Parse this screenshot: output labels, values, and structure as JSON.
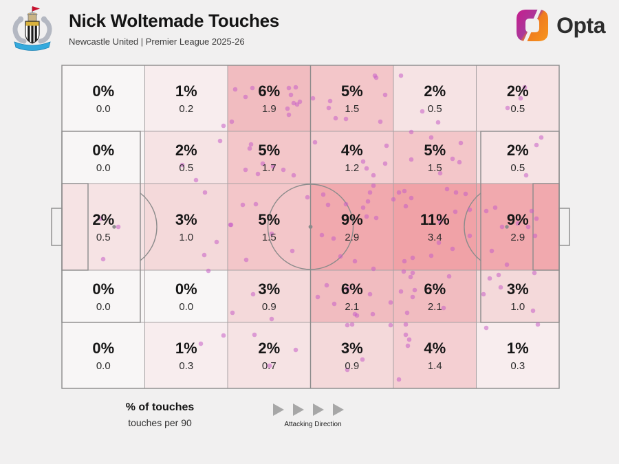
{
  "header": {
    "title": "Nick Woltemade Touches",
    "subtitle": "Newcastle United | Premier League 2025-26",
    "opta_wordmark": "Opta"
  },
  "legend": {
    "primary": "% of touches",
    "secondary": "touches per 90",
    "attacking_direction_label": "Attacking Direction",
    "arrow_count": 4
  },
  "chart_data": {
    "type": "heatmap",
    "title": "Nick Woltemade Touches",
    "subtitle": "Newcastle United | Premier League 2025-26",
    "rows": 5,
    "cols": 6,
    "orientation": "attacking left-to-right",
    "pct": [
      [
        0,
        1,
        6,
        5,
        2,
        2
      ],
      [
        0,
        2,
        5,
        4,
        5,
        2
      ],
      [
        2,
        3,
        5,
        9,
        11,
        9
      ],
      [
        0,
        0,
        3,
        6,
        6,
        3
      ],
      [
        0,
        1,
        2,
        3,
        4,
        1
      ]
    ],
    "per90": [
      [
        "0.0",
        "0.2",
        "1.9",
        "1.5",
        "0.5",
        "0.5"
      ],
      [
        "0.0",
        "0.5",
        "1.7",
        "1.2",
        "1.5",
        "0.5"
      ],
      [
        "0.5",
        "1.0",
        "1.5",
        "2.9",
        "3.4",
        "2.9"
      ],
      [
        "0.0",
        "0.0",
        "0.9",
        "2.1",
        "2.1",
        "1.0"
      ],
      [
        "0.0",
        "0.3",
        "0.7",
        "0.9",
        "1.4",
        "0.3"
      ]
    ],
    "color_scale": {
      "0": "#f8f6f6",
      "1": "#f8edee",
      "2": "#f6e3e4",
      "3": "#f4d9da",
      "4": "#f4cfd2",
      "5": "#f3c6c9",
      "6": "#f1bcc0",
      "9": "#f1a9ae",
      "11": "#f0a2a7"
    },
    "dot_color": "#c75fc7",
    "grid_line_color": "#a8a2a4",
    "pitch_line_color": "#8b8b8b",
    "dots": [
      [
        325,
        183
      ],
      [
        342,
        130
      ],
      [
        367,
        128
      ],
      [
        357,
        141
      ],
      [
        420,
        128
      ],
      [
        430,
        127
      ],
      [
        423,
        138
      ],
      [
        427,
        150
      ],
      [
        432,
        152
      ],
      [
        436,
        148
      ],
      [
        418,
        158
      ],
      [
        420,
        167
      ],
      [
        337,
        177
      ],
      [
        455,
        143
      ],
      [
        480,
        147
      ],
      [
        478,
        157
      ],
      [
        488,
        172
      ],
      [
        503,
        173
      ],
      [
        545,
        110
      ],
      [
        560,
        138
      ],
      [
        553,
        177
      ],
      [
        547,
        113
      ],
      [
        583,
        110
      ],
      [
        637,
        178
      ],
      [
        614,
        162
      ],
      [
        763,
        127
      ],
      [
        757,
        143
      ],
      [
        738,
        157
      ],
      [
        320,
        205
      ],
      [
        285,
        262
      ],
      [
        265,
        240
      ],
      [
        365,
        210
      ],
      [
        363,
        216
      ],
      [
        382,
        238
      ],
      [
        357,
        247
      ],
      [
        375,
        253
      ],
      [
        397,
        242
      ],
      [
        412,
        247
      ],
      [
        427,
        255
      ],
      [
        458,
        207
      ],
      [
        528,
        235
      ],
      [
        533,
        245
      ],
      [
        560,
        238
      ],
      [
        562,
        212
      ],
      [
        543,
        255
      ],
      [
        598,
        192
      ],
      [
        627,
        200
      ],
      [
        670,
        208
      ],
      [
        598,
        232
      ],
      [
        658,
        231
      ],
      [
        668,
        236
      ],
      [
        640,
        252
      ],
      [
        787,
        200
      ],
      [
        780,
        211
      ],
      [
        765,
        255
      ],
      [
        146,
        318
      ],
      [
        172,
        330
      ],
      [
        150,
        377
      ],
      [
        298,
        280
      ],
      [
        335,
        327
      ],
      [
        315,
        352
      ],
      [
        297,
        371
      ],
      [
        353,
        298
      ],
      [
        372,
        297
      ],
      [
        336,
        327
      ],
      [
        395,
        340
      ],
      [
        425,
        365
      ],
      [
        358,
        378
      ],
      [
        447,
        287
      ],
      [
        470,
        283
      ],
      [
        477,
        298
      ],
      [
        468,
        342
      ],
      [
        485,
        347
      ],
      [
        503,
        297
      ],
      [
        528,
        302
      ],
      [
        535,
        293
      ],
      [
        538,
        280
      ],
      [
        543,
        270
      ],
      [
        533,
        315
      ],
      [
        547,
        317
      ],
      [
        543,
        391
      ],
      [
        495,
        373
      ],
      [
        516,
        380
      ],
      [
        572,
        290
      ],
      [
        580,
        280
      ],
      [
        588,
        278
      ],
      [
        598,
        288
      ],
      [
        650,
        275
      ],
      [
        663,
        280
      ],
      [
        677,
        282
      ],
      [
        590,
        300
      ],
      [
        640,
        323
      ],
      [
        662,
        308
      ],
      [
        683,
        305
      ],
      [
        638,
        353
      ],
      [
        658,
        362
      ],
      [
        627,
        372
      ],
      [
        600,
        375
      ],
      [
        588,
        380
      ],
      [
        720,
        302
      ],
      [
        707,
        307
      ],
      [
        773,
        307
      ],
      [
        730,
        330
      ],
      [
        768,
        330
      ],
      [
        753,
        325
      ],
      [
        780,
        318
      ],
      [
        683,
        343
      ],
      [
        778,
        343
      ],
      [
        715,
        365
      ],
      [
        737,
        385
      ],
      [
        303,
        394
      ],
      [
        338,
        455
      ],
      [
        395,
        464
      ],
      [
        368,
        428
      ],
      [
        486,
        442
      ],
      [
        516,
        457
      ],
      [
        519,
        459
      ],
      [
        542,
        457
      ],
      [
        538,
        428
      ],
      [
        462,
        432
      ],
      [
        475,
        415
      ],
      [
        505,
        420
      ],
      [
        587,
        395
      ],
      [
        600,
        397
      ],
      [
        597,
        403
      ],
      [
        653,
        402
      ],
      [
        603,
        422
      ],
      [
        583,
        424
      ],
      [
        600,
        432
      ],
      [
        568,
        440
      ],
      [
        645,
        448
      ],
      [
        592,
        455
      ],
      [
        703,
        428
      ],
      [
        775,
        452
      ],
      [
        728,
        418
      ],
      [
        712,
        405
      ],
      [
        725,
        400
      ],
      [
        777,
        397
      ],
      [
        292,
        500
      ],
      [
        325,
        488
      ],
      [
        370,
        487
      ],
      [
        392,
        532
      ],
      [
        430,
        509
      ],
      [
        505,
        473
      ],
      [
        512,
        472
      ],
      [
        527,
        523
      ],
      [
        505,
        538
      ],
      [
        590,
        472
      ],
      [
        568,
        473
      ],
      [
        590,
        487
      ],
      [
        595,
        494
      ],
      [
        593,
        503
      ],
      [
        580,
        552
      ],
      [
        707,
        477
      ],
      [
        782,
        472
      ]
    ]
  }
}
